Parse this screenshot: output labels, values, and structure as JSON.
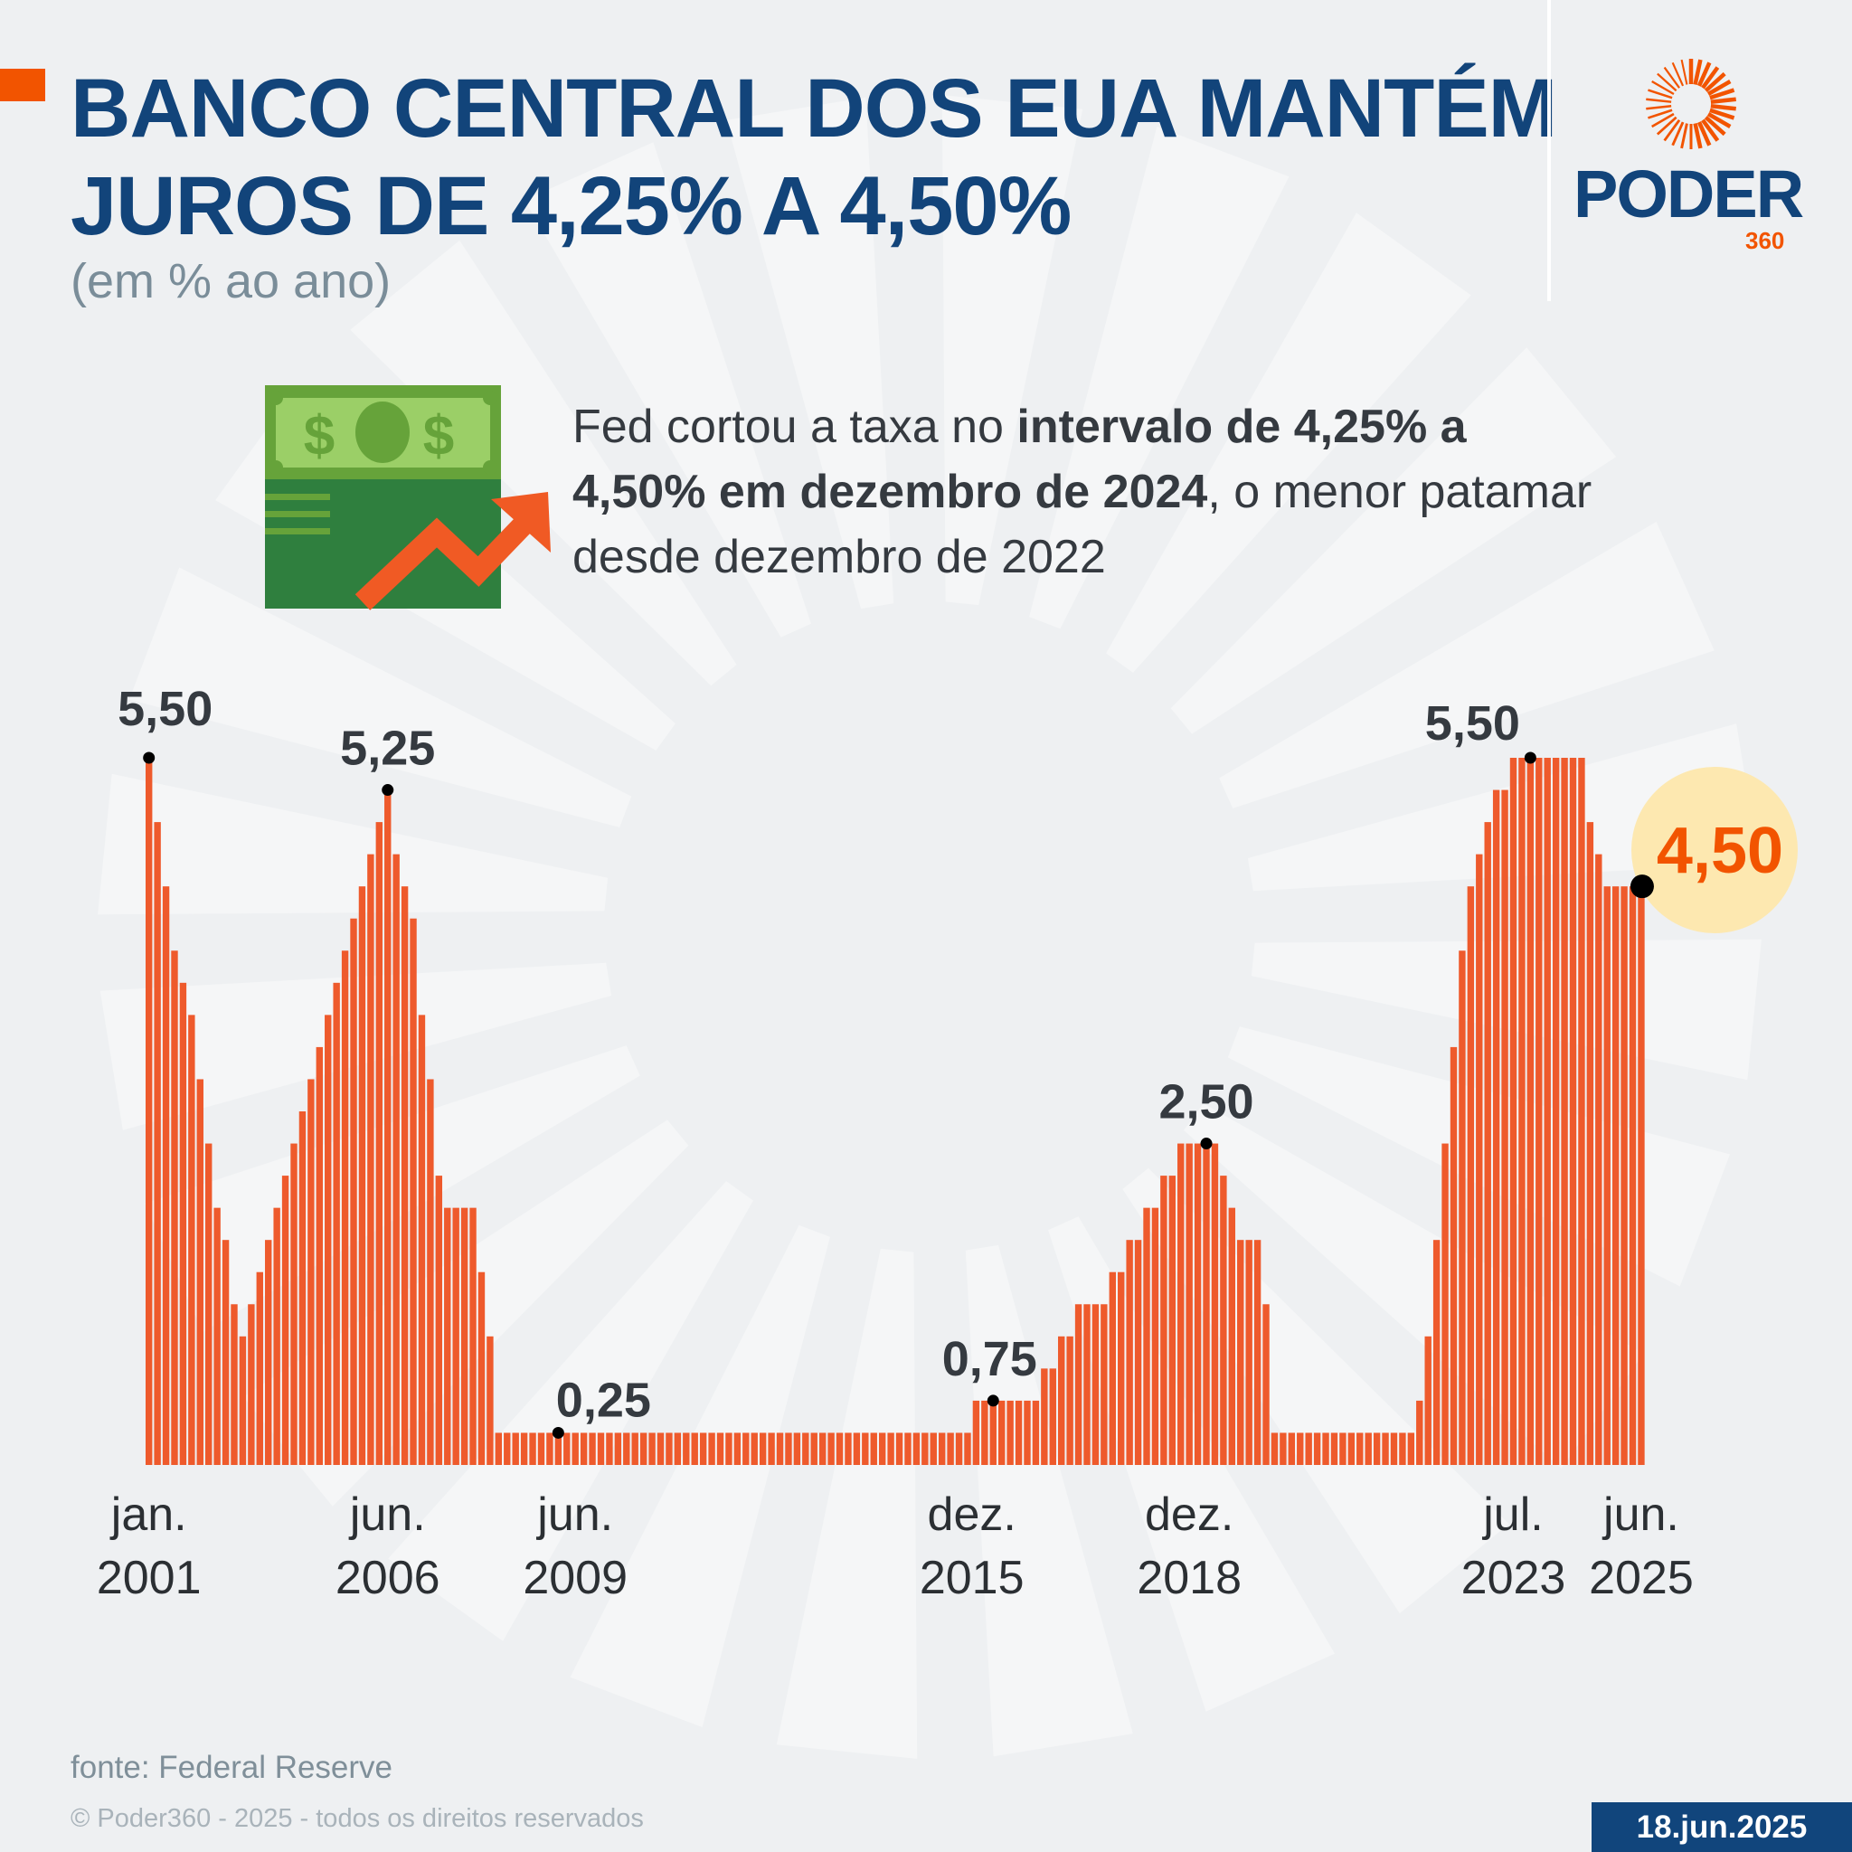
{
  "header": {
    "title_line1": "BANCO CENTRAL DOS EUA MANTÉM",
    "title_line2": "JUROS DE 4,25% A 4,50%",
    "subtitle": "(em % ao ano)"
  },
  "logo": {
    "word": "PODER",
    "number": "360",
    "brand_color": "#12447a",
    "accent_color": "#f25400"
  },
  "description": {
    "part1": "Fed cortou a taxa no ",
    "bold": "intervalo de 4,25% a 4,50% em dezembro de 2024",
    "part2": ", o menor patamar desde dezembro de 2022"
  },
  "icons": {
    "illustration": "money-chart-up-icon",
    "logo": "sunburst-logo-icon"
  },
  "chart_data": {
    "type": "bar",
    "title": "",
    "xlabel": "",
    "ylabel": "",
    "ylim": [
      0,
      5.5
    ],
    "grid": false,
    "bar_color": "#ee5a2c",
    "values": [
      5.5,
      5.0,
      4.5,
      4.0,
      3.75,
      3.5,
      3.0,
      2.5,
      2.0,
      1.75,
      1.25,
      1.0,
      1.25,
      1.5,
      1.75,
      2.0,
      2.25,
      2.5,
      2.75,
      3.0,
      3.25,
      3.5,
      3.75,
      4.0,
      4.25,
      4.5,
      4.75,
      5.0,
      5.25,
      4.75,
      4.5,
      4.25,
      3.5,
      3.0,
      2.25,
      2.0,
      2.0,
      2.0,
      2.0,
      1.5,
      1.0,
      0.25,
      0.25,
      0.25,
      0.25,
      0.25,
      0.25,
      0.25,
      0.25,
      0.25,
      0.25,
      0.25,
      0.25,
      0.25,
      0.25,
      0.25,
      0.25,
      0.25,
      0.25,
      0.25,
      0.25,
      0.25,
      0.25,
      0.25,
      0.25,
      0.25,
      0.25,
      0.25,
      0.25,
      0.25,
      0.25,
      0.25,
      0.25,
      0.25,
      0.25,
      0.25,
      0.25,
      0.25,
      0.25,
      0.25,
      0.25,
      0.25,
      0.25,
      0.25,
      0.25,
      0.25,
      0.25,
      0.25,
      0.25,
      0.25,
      0.25,
      0.25,
      0.25,
      0.25,
      0.25,
      0.25,
      0.25,
      0.5,
      0.5,
      0.5,
      0.5,
      0.5,
      0.5,
      0.5,
      0.5,
      0.75,
      0.75,
      1.0,
      1.0,
      1.25,
      1.25,
      1.25,
      1.25,
      1.5,
      1.5,
      1.75,
      1.75,
      2.0,
      2.0,
      2.25,
      2.25,
      2.5,
      2.5,
      2.5,
      2.5,
      2.5,
      2.25,
      2.0,
      1.75,
      1.75,
      1.75,
      1.25,
      0.25,
      0.25,
      0.25,
      0.25,
      0.25,
      0.25,
      0.25,
      0.25,
      0.25,
      0.25,
      0.25,
      0.25,
      0.25,
      0.25,
      0.25,
      0.25,
      0.25,
      0.5,
      1.0,
      1.75,
      2.5,
      3.25,
      4.0,
      4.5,
      4.75,
      5.0,
      5.25,
      5.25,
      5.5,
      5.5,
      5.5,
      5.5,
      5.5,
      5.5,
      5.5,
      5.5,
      5.5,
      5.0,
      4.75,
      4.5,
      4.5,
      4.5,
      4.5,
      4.5
    ],
    "x_ticks": [
      {
        "month": "jan.",
        "year": "2001"
      },
      {
        "month": "jun.",
        "year": "2006"
      },
      {
        "month": "jun.",
        "year": "2009"
      },
      {
        "month": "dez.",
        "year": "2015"
      },
      {
        "month": "dez.",
        "year": "2018"
      },
      {
        "month": "jul.",
        "year": "2023"
      },
      {
        "month": "jun.",
        "year": "2025"
      }
    ],
    "annotations": [
      {
        "label": "5,50"
      },
      {
        "label": "5,25"
      },
      {
        "label": "0,25"
      },
      {
        "label": "0,75"
      },
      {
        "label": "2,50"
      },
      {
        "label": "5,50"
      },
      {
        "label": "4,50",
        "highlight": true,
        "color": "#f25400",
        "badge_color": "#fde8b0"
      }
    ]
  },
  "footer": {
    "source": "fonte: Federal Reserve",
    "copyright": "© Poder360 - 2025 - todos os direitos reservados",
    "date": "18.jun.2025"
  }
}
